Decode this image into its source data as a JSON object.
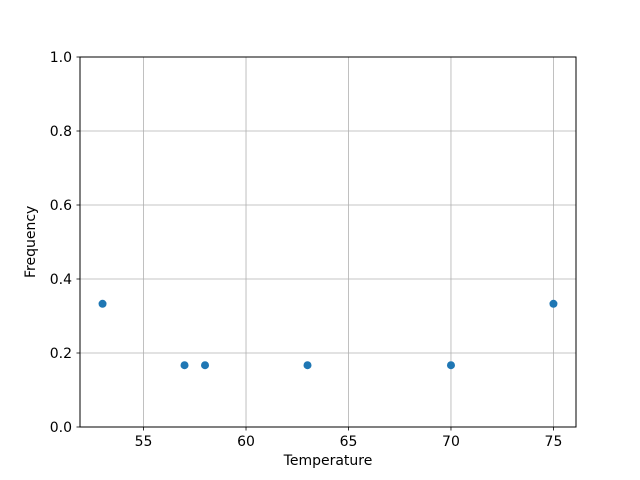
{
  "chart_data": {
    "type": "scatter",
    "title": "",
    "xlabel": "Temperature",
    "ylabel": "Frequency",
    "x": [
      53,
      57,
      58,
      63,
      70,
      75
    ],
    "y": [
      0.333,
      0.167,
      0.167,
      0.167,
      0.167,
      0.333
    ],
    "xlim": [
      51.9,
      76.1
    ],
    "ylim": [
      0.0,
      1.0
    ],
    "xticks": [
      55,
      60,
      65,
      70,
      75
    ],
    "xtick_labels": [
      "55",
      "60",
      "65",
      "70",
      "75"
    ],
    "yticks": [
      0.0,
      0.2,
      0.4,
      0.6,
      0.8,
      1.0
    ],
    "ytick_labels": [
      "0.0",
      "0.2",
      "0.4",
      "0.6",
      "0.8",
      "1.0"
    ],
    "grid": true,
    "legend_position": "none",
    "marker_color": "#1f77b4",
    "grid_color": "#b0b0b0",
    "axis_color": "#000000",
    "text_color": "#000000",
    "background_color": "#ffffff"
  }
}
